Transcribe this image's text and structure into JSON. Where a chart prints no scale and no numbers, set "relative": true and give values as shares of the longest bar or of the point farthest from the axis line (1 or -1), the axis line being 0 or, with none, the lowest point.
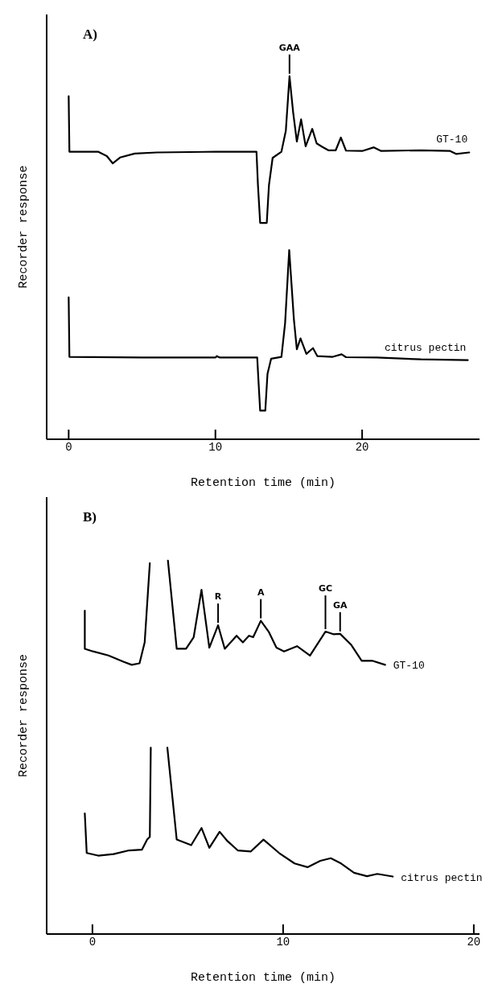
{
  "chart_data": [
    {
      "type": "line",
      "title": "A)",
      "xlabel": "Retention time (min)",
      "ylabel": "Recorder response",
      "relative": true,
      "marker": "none",
      "xlim": [
        -1.5,
        28
      ],
      "xticks": [
        0,
        10,
        20
      ],
      "annotations": [
        {
          "text": "GAA",
          "x": 15.05,
          "y": 1.0
        }
      ],
      "series": [
        {
          "name": "GT-10",
          "color": "#000000",
          "x": [
            0,
            0.05,
            2,
            2.6,
            3,
            3.5,
            4.5,
            6,
            10,
            12.8,
            12.9,
            13.05,
            13.5,
            13.65,
            13.9,
            14.5,
            14.8,
            15.05,
            15.3,
            15.55,
            15.84,
            16.15,
            16.6,
            16.9,
            17.3,
            17.7,
            18.2,
            18.55,
            18.9,
            20,
            20.8,
            21.3,
            24,
            26,
            26.4,
            27.3
          ],
          "values": [
            0.945,
            0.792,
            0.792,
            0.78,
            0.76,
            0.776,
            0.787,
            0.79,
            0.792,
            0.792,
            0.7,
            0.596,
            0.596,
            0.7,
            0.775,
            0.792,
            0.85,
            1.0,
            0.9,
            0.82,
            0.881,
            0.807,
            0.855,
            0.815,
            0.805,
            0.796,
            0.796,
            0.831,
            0.795,
            0.794,
            0.804,
            0.794,
            0.796,
            0.794,
            0.786,
            0.79
          ]
        },
        {
          "name": "citrus pectin",
          "color": "#000000",
          "x": [
            0,
            0.05,
            5,
            10,
            10.1,
            10.3,
            12.85,
            12.95,
            13.05,
            13.4,
            13.55,
            13.8,
            14.5,
            14.75,
            15.03,
            15.35,
            15.55,
            15.8,
            16.2,
            16.65,
            16.95,
            18,
            18.6,
            18.9,
            21,
            24,
            27.2
          ],
          "values": [
            0.391,
            0.227,
            0.225,
            0.225,
            0.229,
            0.225,
            0.225,
            0.15,
            0.079,
            0.079,
            0.18,
            0.222,
            0.227,
            0.32,
            0.521,
            0.33,
            0.248,
            0.278,
            0.235,
            0.251,
            0.229,
            0.227,
            0.234,
            0.226,
            0.225,
            0.22,
            0.218
          ]
        }
      ]
    },
    {
      "type": "line",
      "title": "B)",
      "xlabel": "Retention time (min)",
      "ylabel": "Recorder response",
      "relative": true,
      "marker": "none",
      "xlim": [
        -2.4,
        20.3
      ],
      "xticks": [
        0,
        10,
        20
      ],
      "annotations": [
        {
          "text": "R",
          "x": 6.59,
          "y": 0.827
        },
        {
          "text": "A",
          "x": 8.83,
          "y": 0.839
        },
        {
          "text": "GC",
          "x": 12.22,
          "y": 0.81
        },
        {
          "text": "GA",
          "x": 12.99,
          "y": 0.804
        }
      ],
      "series": [
        {
          "name": "GT-10",
          "color": "#000000",
          "x": [
            -0.4,
            -0.4,
            0.03,
            0.84,
            1.65,
            2.06,
            2.47,
            2.74,
            3.01,
            3.5,
            3.96,
            4.42,
            4.91,
            5.31,
            5.72,
            6.13,
            6.59,
            6.94,
            7.56,
            7.89,
            8.21,
            8.43,
            8.83,
            9.24,
            9.65,
            10.05,
            10.73,
            11.41,
            12.22,
            12.63,
            12.99,
            13.58,
            14.12,
            14.67,
            15.35
          ],
          "values": [
            0.866,
            0.764,
            0.757,
            0.746,
            0.729,
            0.721,
            0.725,
            0.781,
            0.993,
            null,
            1.0,
            0.764,
            0.764,
            0.795,
            0.922,
            0.767,
            0.827,
            0.764,
            0.799,
            0.781,
            0.799,
            0.795,
            0.839,
            0.81,
            0.767,
            0.757,
            0.771,
            0.746,
            0.81,
            0.803,
            0.804,
            0.774,
            0.732,
            0.732,
            0.721
          ]
        },
        {
          "name": "citrus pectin",
          "color": "#000000",
          "x": [
            -0.4,
            -0.3,
            0.3,
            1.11,
            1.92,
            2.6,
            2.87,
            3.01,
            3.06,
            3.5,
            3.93,
            4.42,
            5.18,
            5.72,
            6.13,
            6.67,
            7.08,
            7.62,
            8.3,
            8.97,
            9.79,
            10.6,
            11.28,
            11.95,
            12.5,
            13.04,
            13.72,
            14.4,
            14.94,
            15.75
          ],
          "values": [
            0.323,
            0.217,
            0.21,
            0.214,
            0.224,
            0.226,
            0.253,
            0.26,
            0.499,
            null,
            0.499,
            0.253,
            0.238,
            0.284,
            0.231,
            0.274,
            0.249,
            0.224,
            0.221,
            0.253,
            0.217,
            0.189,
            0.179,
            0.196,
            0.203,
            0.189,
            0.164,
            0.155,
            0.161,
            0.154
          ]
        }
      ]
    }
  ]
}
